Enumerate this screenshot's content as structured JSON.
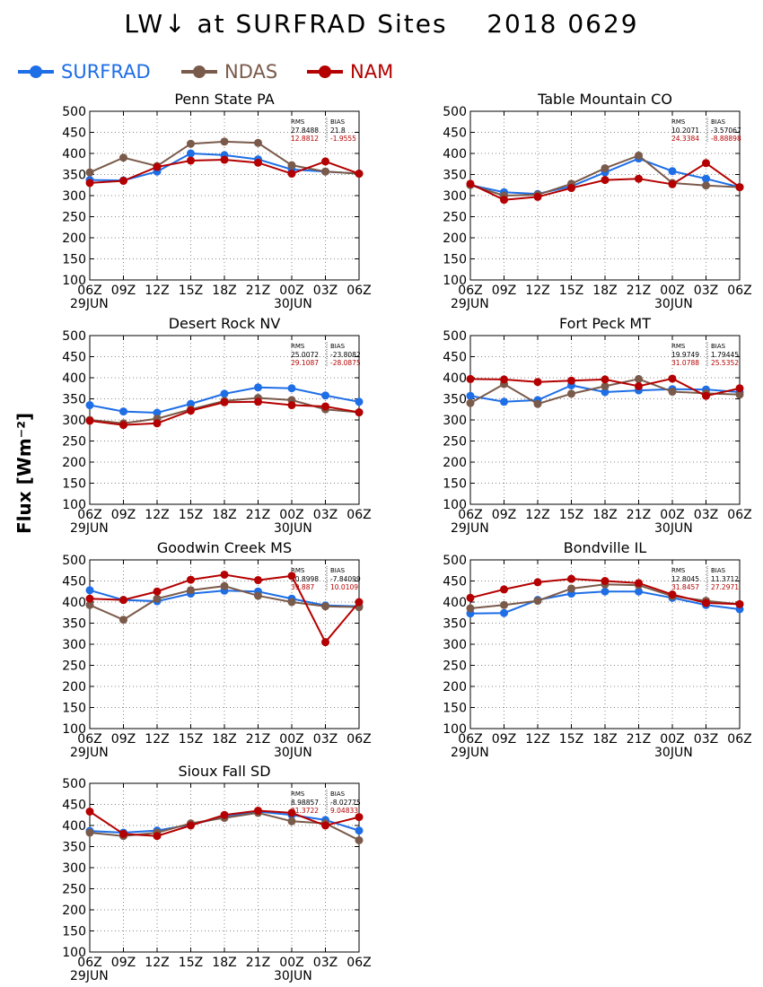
{
  "page": {
    "title": "LW↓ at SURFRAD Sites    2018 0629",
    "ylabel": "Flux [Wm⁻²]"
  },
  "legend": [
    {
      "name": "SURFRAD",
      "color": "#1e6ee6"
    },
    {
      "name": "NDAS",
      "color": "#7a5a4a"
    },
    {
      "name": "NAM",
      "color": "#b40000"
    }
  ],
  "chart_data": [
    {
      "type": "line",
      "title": "Penn State PA",
      "x": [
        "06Z",
        "09Z",
        "12Z",
        "15Z",
        "18Z",
        "21Z",
        "00Z",
        "03Z",
        "06Z"
      ],
      "date_labels": [
        {
          "at": "06Z",
          "text": "29JUN"
        },
        {
          "at": "00Z",
          "text": "30JUN"
        }
      ],
      "ylim": [
        100,
        500
      ],
      "yticks": [
        100,
        150,
        200,
        250,
        300,
        350,
        400,
        450,
        500
      ],
      "grid": true,
      "stats": {
        "header": [
          "RMS",
          "BIAS"
        ],
        "rows": [
          [
            "27.8488",
            "21.8"
          ],
          [
            "12.8812",
            "-1.9555"
          ]
        ]
      },
      "series": [
        {
          "name": "SURFRAD",
          "values": [
            337,
            336,
            357,
            400,
            396,
            386,
            362,
            357,
            352
          ]
        },
        {
          "name": "NDAS",
          "values": [
            355,
            390,
            370,
            423,
            428,
            425,
            372,
            357,
            352
          ]
        },
        {
          "name": "NAM",
          "values": [
            330,
            335,
            368,
            383,
            385,
            378,
            352,
            381,
            352
          ]
        }
      ]
    },
    {
      "type": "line",
      "title": "Table Mountain CO",
      "x": [
        "06Z",
        "09Z",
        "12Z",
        "15Z",
        "18Z",
        "21Z",
        "00Z",
        "03Z",
        "06Z"
      ],
      "date_labels": [
        {
          "at": "06Z",
          "text": "29JUN"
        },
        {
          "at": "00Z",
          "text": "30JUN"
        }
      ],
      "ylim": [
        100,
        500
      ],
      "yticks": [
        100,
        150,
        200,
        250,
        300,
        350,
        400,
        450,
        500
      ],
      "grid": true,
      "stats": {
        "header": [
          "RMS",
          "BIAS"
        ],
        "rows": [
          [
            "10.2071",
            "-3.57067"
          ],
          [
            "24.3384",
            "-8.88898"
          ]
        ]
      },
      "series": [
        {
          "name": "SURFRAD",
          "values": [
            325,
            308,
            304,
            322,
            355,
            388,
            358,
            340,
            320
          ]
        },
        {
          "name": "NDAS",
          "values": [
            325,
            300,
            302,
            328,
            365,
            395,
            330,
            324,
            320
          ]
        },
        {
          "name": "NAM",
          "values": [
            328,
            290,
            297,
            318,
            337,
            340,
            327,
            377,
            320
          ]
        }
      ]
    },
    {
      "type": "line",
      "title": "Desert Rock NV",
      "x": [
        "06Z",
        "09Z",
        "12Z",
        "15Z",
        "18Z",
        "21Z",
        "00Z",
        "03Z",
        "06Z"
      ],
      "date_labels": [
        {
          "at": "06Z",
          "text": "29JUN"
        },
        {
          "at": "00Z",
          "text": "30JUN"
        }
      ],
      "ylim": [
        100,
        500
      ],
      "yticks": [
        100,
        150,
        200,
        250,
        300,
        350,
        400,
        450,
        500
      ],
      "grid": true,
      "stats": {
        "header": [
          "RMS",
          "BIAS"
        ],
        "rows": [
          [
            "25.0072",
            "-23.8082"
          ],
          [
            "29.1087",
            "-28.0875"
          ]
        ]
      },
      "series": [
        {
          "name": "SURFRAD",
          "values": [
            335,
            320,
            317,
            338,
            362,
            377,
            375,
            358,
            343
          ]
        },
        {
          "name": "NDAS",
          "values": [
            300,
            292,
            303,
            325,
            345,
            352,
            347,
            325,
            318
          ]
        },
        {
          "name": "NAM",
          "values": [
            298,
            288,
            292,
            322,
            342,
            343,
            335,
            332,
            318
          ]
        }
      ]
    },
    {
      "type": "line",
      "title": "Fort Peck MT",
      "x": [
        "06Z",
        "09Z",
        "12Z",
        "15Z",
        "18Z",
        "21Z",
        "00Z",
        "03Z",
        "06Z"
      ],
      "date_labels": [
        {
          "at": "06Z",
          "text": "29JUN"
        },
        {
          "at": "00Z",
          "text": "30JUN"
        }
      ],
      "ylim": [
        100,
        500
      ],
      "yticks": [
        100,
        150,
        200,
        250,
        300,
        350,
        400,
        450,
        500
      ],
      "grid": true,
      "stats": {
        "header": [
          "RMS",
          "BIAS"
        ],
        "rows": [
          [
            "19.9749",
            "1.79445"
          ],
          [
            "31.0788",
            "25.5352"
          ]
        ]
      },
      "series": [
        {
          "name": "SURFRAD",
          "values": [
            357,
            343,
            347,
            382,
            366,
            370,
            373,
            372,
            366
          ]
        },
        {
          "name": "NDAS",
          "values": [
            340,
            385,
            338,
            362,
            380,
            397,
            367,
            363,
            360
          ]
        },
        {
          "name": "NAM",
          "values": [
            397,
            396,
            390,
            393,
            396,
            380,
            398,
            357,
            375
          ]
        }
      ]
    },
    {
      "type": "line",
      "title": "Goodwin Creek MS",
      "x": [
        "06Z",
        "09Z",
        "12Z",
        "15Z",
        "18Z",
        "21Z",
        "00Z",
        "03Z",
        "06Z"
      ],
      "date_labels": [
        {
          "at": "06Z",
          "text": "29JUN"
        },
        {
          "at": "00Z",
          "text": "30JUN"
        }
      ],
      "ylim": [
        100,
        500
      ],
      "yticks": [
        100,
        150,
        200,
        250,
        300,
        350,
        400,
        450,
        500
      ],
      "grid": true,
      "stats": {
        "header": [
          "RMS",
          "BIAS"
        ],
        "rows": [
          [
            "10.8998",
            "-7.84099"
          ],
          [
            "39.887",
            "10.0109"
          ]
        ]
      },
      "series": [
        {
          "name": "SURFRAD",
          "values": [
            428,
            405,
            402,
            420,
            427,
            425,
            408,
            392,
            390
          ]
        },
        {
          "name": "NDAS",
          "values": [
            393,
            358,
            408,
            428,
            438,
            415,
            400,
            390,
            388
          ]
        },
        {
          "name": "NAM",
          "values": [
            408,
            405,
            425,
            453,
            465,
            452,
            462,
            305,
            400
          ]
        }
      ]
    },
    {
      "type": "line",
      "title": "Bondville IL",
      "x": [
        "06Z",
        "09Z",
        "12Z",
        "15Z",
        "18Z",
        "21Z",
        "00Z",
        "03Z",
        "06Z"
      ],
      "date_labels": [
        {
          "at": "06Z",
          "text": "29JUN"
        },
        {
          "at": "00Z",
          "text": "30JUN"
        }
      ],
      "ylim": [
        100,
        500
      ],
      "yticks": [
        100,
        150,
        200,
        250,
        300,
        350,
        400,
        450,
        500
      ],
      "grid": true,
      "stats": {
        "header": [
          "RMS",
          "BIAS"
        ],
        "rows": [
          [
            "12.8045",
            "11.3712"
          ],
          [
            "31.8457",
            "27.2971"
          ]
        ]
      },
      "series": [
        {
          "name": "SURFRAD",
          "values": [
            373,
            374,
            405,
            420,
            425,
            425,
            410,
            393,
            383
          ]
        },
        {
          "name": "NDAS",
          "values": [
            385,
            393,
            403,
            432,
            442,
            440,
            414,
            403,
            395
          ]
        },
        {
          "name": "NAM",
          "values": [
            410,
            430,
            447,
            455,
            450,
            445,
            418,
            398,
            395
          ]
        }
      ]
    },
    {
      "type": "line",
      "title": "Sioux Fall SD",
      "x": [
        "06Z",
        "09Z",
        "12Z",
        "15Z",
        "18Z",
        "21Z",
        "00Z",
        "03Z",
        "06Z"
      ],
      "date_labels": [
        {
          "at": "06Z",
          "text": "29JUN"
        },
        {
          "at": "00Z",
          "text": "30JUN"
        }
      ],
      "ylim": [
        100,
        500
      ],
      "yticks": [
        100,
        150,
        200,
        250,
        300,
        350,
        400,
        450,
        500
      ],
      "grid": true,
      "stats": {
        "header": [
          "RMS",
          "BIAS"
        ],
        "rows": [
          [
            "8.98857",
            "-8.02775"
          ],
          [
            "21.3722",
            "9.04833"
          ]
        ]
      },
      "series": [
        {
          "name": "SURFRAD",
          "values": [
            387,
            383,
            388,
            402,
            420,
            433,
            425,
            413,
            388
          ]
        },
        {
          "name": "NDAS",
          "values": [
            383,
            375,
            383,
            405,
            418,
            430,
            410,
            405,
            365
          ]
        },
        {
          "name": "NAM",
          "values": [
            433,
            380,
            375,
            400,
            425,
            435,
            430,
            400,
            420
          ]
        }
      ]
    }
  ]
}
